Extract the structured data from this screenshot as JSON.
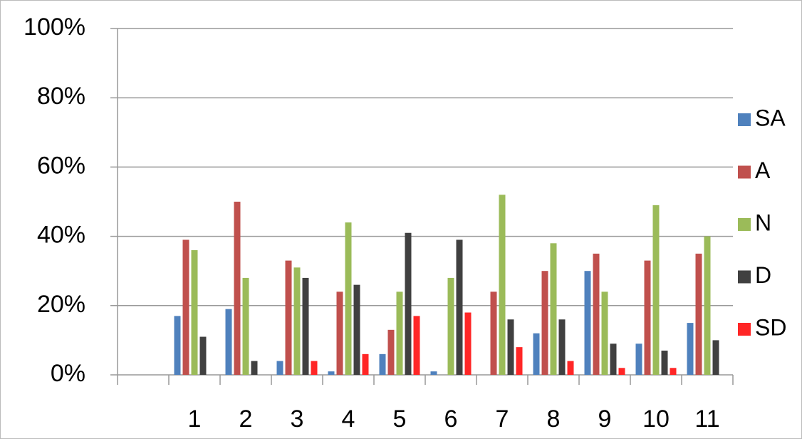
{
  "chart_data": {
    "type": "bar",
    "categories": [
      null,
      "1",
      "2",
      "3",
      "4",
      "5",
      "6",
      "7",
      "8",
      "9",
      "10",
      "11"
    ],
    "series": [
      {
        "name": "SA",
        "color": "#4f81bd",
        "values": [
          null,
          17,
          19,
          4,
          1,
          6,
          1,
          0,
          12,
          30,
          9,
          15
        ]
      },
      {
        "name": "A",
        "color": "#c0504d",
        "values": [
          null,
          39,
          50,
          33,
          24,
          13,
          0,
          24,
          30,
          35,
          33,
          35
        ]
      },
      {
        "name": "N",
        "color": "#9bbb59",
        "values": [
          null,
          36,
          28,
          31,
          44,
          24,
          28,
          52,
          38,
          24,
          49,
          40
        ]
      },
      {
        "name": "D",
        "color": "#404040",
        "values": [
          null,
          11,
          4,
          28,
          26,
          41,
          39,
          16,
          16,
          9,
          7,
          10
        ]
      },
      {
        "name": "SD",
        "color": "#ff2626",
        "values": [
          null,
          0,
          0,
          4,
          6,
          17,
          18,
          8,
          4,
          2,
          2,
          0
        ]
      }
    ],
    "ylim": [
      0,
      100
    ],
    "yticks": [
      {
        "value": 0,
        "label": "0%"
      },
      {
        "value": 20,
        "label": "20%"
      },
      {
        "value": 40,
        "label": "40%"
      },
      {
        "value": 60,
        "label": "60%"
      },
      {
        "value": 80,
        "label": "80%"
      },
      {
        "value": 100,
        "label": "100%"
      }
    ],
    "grid": true,
    "legend": "right"
  }
}
